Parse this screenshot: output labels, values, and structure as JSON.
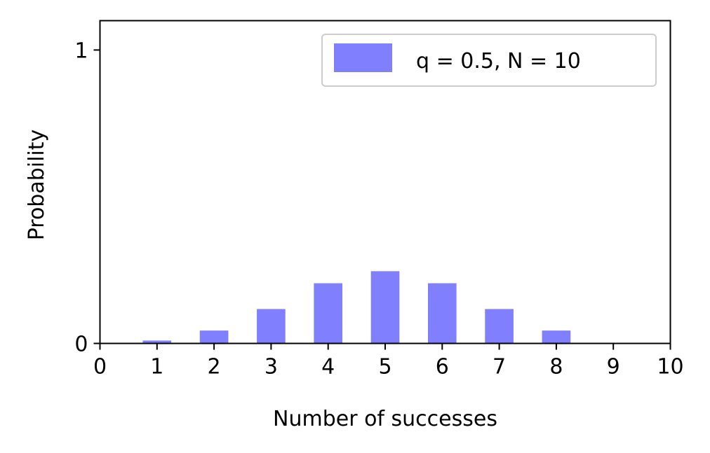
{
  "chart_data": {
    "type": "bar",
    "title": "",
    "xlabel": "Number of successes",
    "ylabel": "Probability",
    "x": [
      1,
      2,
      3,
      4,
      5,
      6,
      7,
      8,
      9
    ],
    "series": [
      {
        "name": "q = 0.5, N = 10",
        "color": "#8080ff",
        "values": [
          0.0098,
          0.0439,
          0.1172,
          0.2051,
          0.2461,
          0.2051,
          0.1172,
          0.0439,
          0.0
        ]
      }
    ],
    "xlim": [
      0,
      10
    ],
    "ylim": [
      0,
      1.1
    ],
    "xticks": [
      "0",
      "1",
      "2",
      "3",
      "4",
      "5",
      "6",
      "7",
      "8",
      "9",
      "10"
    ],
    "yticks": [
      "0",
      "1"
    ],
    "grid": false,
    "legend_position": "top-right"
  }
}
